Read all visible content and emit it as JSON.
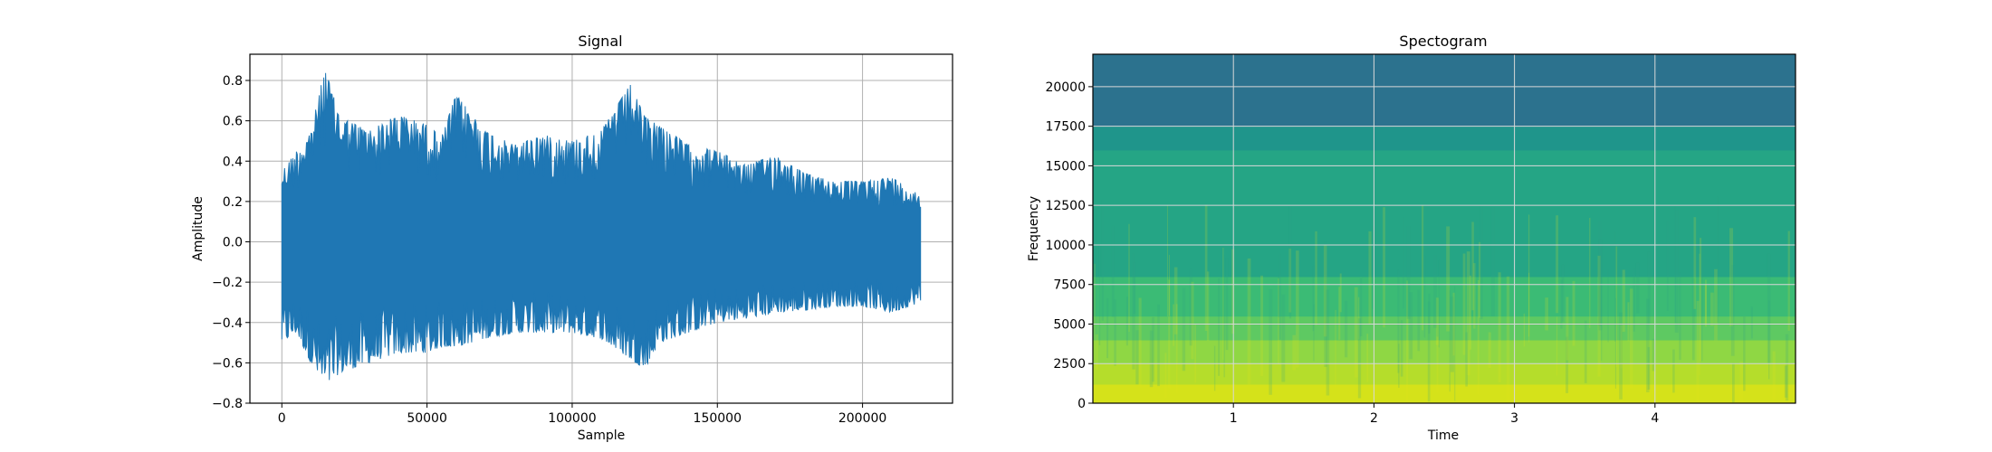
{
  "chart_data": [
    {
      "type": "line",
      "title": "Signal",
      "xlabel": "Sample",
      "ylabel": "Amplitude",
      "xlim": [
        -11000,
        231000
      ],
      "ylim": [
        -0.8,
        0.93
      ],
      "xticks": [
        0,
        50000,
        100000,
        150000,
        200000
      ],
      "xtick_labels": [
        "0",
        "50000",
        "100000",
        "150000",
        "200000"
      ],
      "yticks": [
        -0.8,
        -0.6,
        -0.4,
        -0.2,
        0.0,
        0.2,
        0.4,
        0.6,
        0.8
      ],
      "ytick_labels": [
        "−0.8",
        "−0.6",
        "−0.4",
        "−0.2",
        "0.0",
        "0.2",
        "0.4",
        "0.6",
        "0.8"
      ],
      "grid": true,
      "color": "#1f77b4",
      "series": [
        {
          "x": [
            0,
            5000,
            10000,
            14800,
            20000,
            30000,
            40000,
            50000,
            55000,
            60000,
            70000,
            80000,
            90000,
            100000,
            110000,
            120000,
            125000,
            130000,
            140000,
            150000,
            160000,
            170000,
            180000,
            190000,
            200000,
            210000,
            220000
          ],
          "upper": [
            0.35,
            0.45,
            0.55,
            0.86,
            0.62,
            0.55,
            0.63,
            0.58,
            0.52,
            0.73,
            0.55,
            0.48,
            0.53,
            0.5,
            0.55,
            0.78,
            0.62,
            0.58,
            0.48,
            0.45,
            0.38,
            0.43,
            0.34,
            0.3,
            0.3,
            0.32,
            0.23
          ],
          "lower": [
            -0.5,
            -0.45,
            -0.6,
            -0.72,
            -0.65,
            -0.6,
            -0.55,
            -0.55,
            -0.52,
            -0.52,
            -0.48,
            -0.45,
            -0.45,
            -0.45,
            -0.48,
            -0.58,
            -0.63,
            -0.5,
            -0.45,
            -0.4,
            -0.38,
            -0.35,
            -0.34,
            -0.32,
            -0.32,
            -0.35,
            -0.3
          ]
        }
      ]
    },
    {
      "type": "heatmap",
      "title": "Spectogram",
      "xlabel": "Time",
      "ylabel": "Frequency",
      "xlim": [
        0,
        5
      ],
      "ylim": [
        0,
        22050
      ],
      "xticks": [
        1,
        2,
        3,
        4
      ],
      "xtick_labels": [
        "1",
        "2",
        "3",
        "4"
      ],
      "yticks": [
        0,
        2500,
        5000,
        7500,
        10000,
        12500,
        15000,
        17500,
        20000
      ],
      "ytick_labels": [
        "0",
        "2500",
        "5000",
        "7500",
        "10000",
        "12500",
        "15000",
        "17500",
        "20000"
      ],
      "grid": true,
      "colormap": "viridis",
      "bands": [
        {
          "from": 0,
          "to": 1200,
          "color": "#d5e21a"
        },
        {
          "from": 1200,
          "to": 2500,
          "color": "#b5dd2b"
        },
        {
          "from": 2500,
          "to": 4000,
          "color": "#8fd744"
        },
        {
          "from": 4000,
          "to": 5500,
          "color": "#5ec962"
        },
        {
          "from": 5500,
          "to": 8000,
          "color": "#3bbb75"
        },
        {
          "from": 8000,
          "to": 16000,
          "color": "#25a585"
        },
        {
          "from": 16000,
          "to": 17500,
          "color": "#1f958b"
        },
        {
          "from": 17500,
          "to": 22050,
          "color": "#2c728e"
        }
      ]
    }
  ]
}
